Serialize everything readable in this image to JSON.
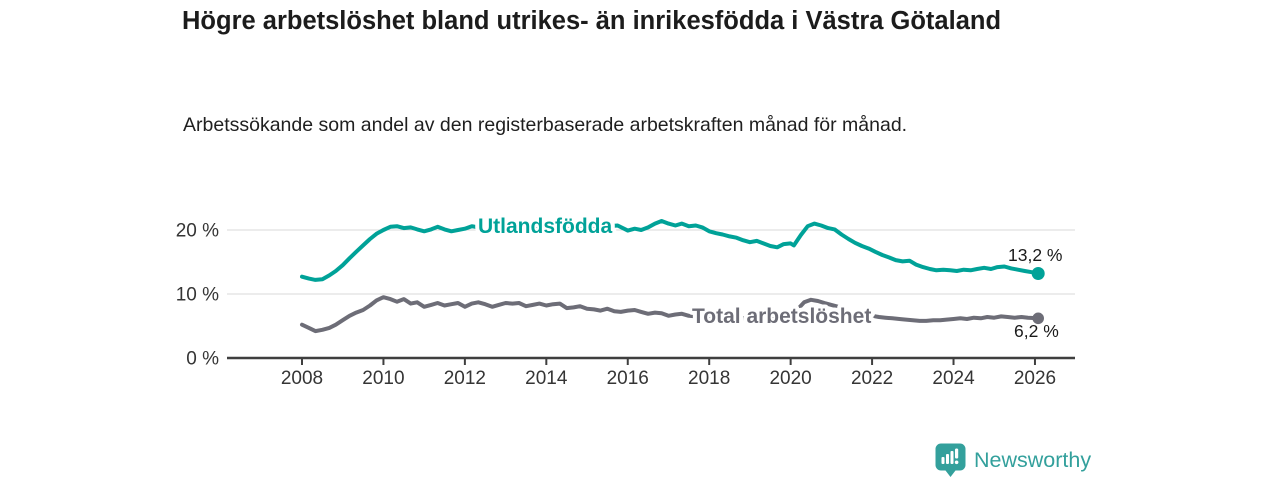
{
  "header": {
    "title": "Högre arbetslöshet bland utrikes- än inrikesfödda i Västra Götaland",
    "subtitle": "Arbetssökande som andel av den registerbaserade arbetskraften månad för månad."
  },
  "branding": {
    "logo_text": "Newsworthy",
    "logo_icon": "bar-chart-bubble-icon",
    "logo_color": "#33a09c"
  },
  "colors": {
    "background": "#ffffff",
    "title_text": "#1c1c1c",
    "axis_text": "#353535",
    "gridline": "#d9d9d9",
    "series_foreign_born": "#00a298",
    "series_total": "#6d6d77"
  },
  "chart_data": {
    "type": "line",
    "title": "Högre arbetslöshet bland utrikes- än inrikesfödda i Västra Götaland",
    "subtitle": "Arbetssökande som andel av den registerbaserade arbetskraften månad för månad.",
    "unit": "%",
    "x_axis": {
      "ticks": [
        2008,
        2010,
        2012,
        2014,
        2016,
        2018,
        2020,
        2022,
        2024,
        2026
      ]
    },
    "y_axis": {
      "ticks": [
        {
          "value": 0,
          "label": "0 %"
        },
        {
          "value": 10,
          "label": "10 %"
        },
        {
          "value": 20,
          "label": "20 %"
        }
      ],
      "range": [
        0,
        23
      ]
    },
    "legend_position": "inline-labels-on-lines",
    "grid": "horizontal-only",
    "series": [
      {
        "name": "Utlandsfödda",
        "color": "#00a298",
        "end_label": "13,2 %",
        "end_value": 13.2,
        "points": [
          [
            2008.0,
            12.7
          ],
          [
            2008.17,
            12.4
          ],
          [
            2008.33,
            12.2
          ],
          [
            2008.5,
            12.3
          ],
          [
            2008.67,
            12.9
          ],
          [
            2008.83,
            13.6
          ],
          [
            2009.0,
            14.5
          ],
          [
            2009.17,
            15.6
          ],
          [
            2009.33,
            16.6
          ],
          [
            2009.5,
            17.6
          ],
          [
            2009.67,
            18.6
          ],
          [
            2009.83,
            19.4
          ],
          [
            2010.0,
            20.0
          ],
          [
            2010.17,
            20.5
          ],
          [
            2010.33,
            20.6
          ],
          [
            2010.5,
            20.3
          ],
          [
            2010.67,
            20.4
          ],
          [
            2010.83,
            20.1
          ],
          [
            2011.0,
            19.8
          ],
          [
            2011.17,
            20.1
          ],
          [
            2011.33,
            20.5
          ],
          [
            2011.5,
            20.1
          ],
          [
            2011.67,
            19.8
          ],
          [
            2011.83,
            20.0
          ],
          [
            2012.0,
            20.2
          ],
          [
            2012.17,
            20.6
          ],
          [
            2012.33,
            20.4
          ],
          [
            2012.5,
            20.3
          ],
          [
            2012.67,
            20.5
          ],
          [
            2012.83,
            20.2
          ],
          [
            2013.0,
            20.4
          ],
          [
            2013.25,
            20.6
          ],
          [
            2013.5,
            20.3
          ],
          [
            2013.75,
            20.5
          ],
          [
            2014.0,
            20.4
          ],
          [
            2014.25,
            20.2
          ],
          [
            2014.5,
            20.4
          ],
          [
            2014.75,
            20.3
          ],
          [
            2015.0,
            20.5
          ],
          [
            2015.25,
            20.4
          ],
          [
            2015.5,
            20.6
          ],
          [
            2015.75,
            20.7
          ],
          [
            2016.0,
            19.9
          ],
          [
            2016.17,
            20.2
          ],
          [
            2016.33,
            20.0
          ],
          [
            2016.5,
            20.4
          ],
          [
            2016.67,
            21.0
          ],
          [
            2016.83,
            21.4
          ],
          [
            2017.0,
            21.0
          ],
          [
            2017.17,
            20.7
          ],
          [
            2017.33,
            21.0
          ],
          [
            2017.5,
            20.6
          ],
          [
            2017.67,
            20.7
          ],
          [
            2017.83,
            20.4
          ],
          [
            2018.0,
            19.8
          ],
          [
            2018.17,
            19.5
          ],
          [
            2018.33,
            19.3
          ],
          [
            2018.5,
            19.0
          ],
          [
            2018.67,
            18.8
          ],
          [
            2018.83,
            18.4
          ],
          [
            2019.0,
            18.1
          ],
          [
            2019.17,
            18.3
          ],
          [
            2019.33,
            17.9
          ],
          [
            2019.5,
            17.5
          ],
          [
            2019.67,
            17.3
          ],
          [
            2019.83,
            17.8
          ],
          [
            2020.0,
            17.9
          ],
          [
            2020.08,
            17.6
          ],
          [
            2020.25,
            19.2
          ],
          [
            2020.42,
            20.6
          ],
          [
            2020.58,
            21.0
          ],
          [
            2020.75,
            20.7
          ],
          [
            2020.92,
            20.3
          ],
          [
            2021.08,
            20.1
          ],
          [
            2021.25,
            19.3
          ],
          [
            2021.42,
            18.6
          ],
          [
            2021.58,
            18.0
          ],
          [
            2021.75,
            17.5
          ],
          [
            2021.92,
            17.1
          ],
          [
            2022.08,
            16.6
          ],
          [
            2022.25,
            16.1
          ],
          [
            2022.42,
            15.7
          ],
          [
            2022.58,
            15.3
          ],
          [
            2022.75,
            15.1
          ],
          [
            2022.92,
            15.2
          ],
          [
            2023.08,
            14.6
          ],
          [
            2023.25,
            14.2
          ],
          [
            2023.42,
            13.9
          ],
          [
            2023.58,
            13.7
          ],
          [
            2023.75,
            13.8
          ],
          [
            2023.92,
            13.7
          ],
          [
            2024.08,
            13.6
          ],
          [
            2024.25,
            13.8
          ],
          [
            2024.42,
            13.7
          ],
          [
            2024.58,
            13.9
          ],
          [
            2024.75,
            14.1
          ],
          [
            2024.92,
            13.9
          ],
          [
            2025.08,
            14.2
          ],
          [
            2025.25,
            14.3
          ],
          [
            2025.42,
            14.0
          ],
          [
            2025.58,
            13.8
          ],
          [
            2025.75,
            13.6
          ],
          [
            2025.92,
            13.4
          ],
          [
            2026.08,
            13.2
          ]
        ]
      },
      {
        "name": "Total arbetslöshet",
        "color": "#6d6d77",
        "end_label": "6,2 %",
        "end_value": 6.2,
        "points": [
          [
            2008.0,
            5.2
          ],
          [
            2008.17,
            4.7
          ],
          [
            2008.33,
            4.2
          ],
          [
            2008.5,
            4.4
          ],
          [
            2008.67,
            4.7
          ],
          [
            2008.83,
            5.2
          ],
          [
            2009.0,
            5.9
          ],
          [
            2009.17,
            6.6
          ],
          [
            2009.33,
            7.1
          ],
          [
            2009.5,
            7.5
          ],
          [
            2009.67,
            8.2
          ],
          [
            2009.83,
            9.0
          ],
          [
            2010.0,
            9.5
          ],
          [
            2010.17,
            9.2
          ],
          [
            2010.33,
            8.8
          ],
          [
            2010.5,
            9.2
          ],
          [
            2010.67,
            8.5
          ],
          [
            2010.83,
            8.7
          ],
          [
            2011.0,
            8.0
          ],
          [
            2011.17,
            8.3
          ],
          [
            2011.33,
            8.6
          ],
          [
            2011.5,
            8.2
          ],
          [
            2011.67,
            8.4
          ],
          [
            2011.83,
            8.6
          ],
          [
            2012.0,
            8.0
          ],
          [
            2012.17,
            8.5
          ],
          [
            2012.33,
            8.7
          ],
          [
            2012.5,
            8.4
          ],
          [
            2012.67,
            8.0
          ],
          [
            2012.83,
            8.3
          ],
          [
            2013.0,
            8.6
          ],
          [
            2013.17,
            8.5
          ],
          [
            2013.33,
            8.6
          ],
          [
            2013.5,
            8.1
          ],
          [
            2013.67,
            8.3
          ],
          [
            2013.83,
            8.5
          ],
          [
            2014.0,
            8.2
          ],
          [
            2014.17,
            8.4
          ],
          [
            2014.33,
            8.5
          ],
          [
            2014.5,
            7.8
          ],
          [
            2014.67,
            7.9
          ],
          [
            2014.83,
            8.1
          ],
          [
            2015.0,
            7.7
          ],
          [
            2015.17,
            7.6
          ],
          [
            2015.33,
            7.4
          ],
          [
            2015.5,
            7.7
          ],
          [
            2015.67,
            7.3
          ],
          [
            2015.83,
            7.2
          ],
          [
            2016.0,
            7.4
          ],
          [
            2016.17,
            7.5
          ],
          [
            2016.33,
            7.2
          ],
          [
            2016.5,
            6.9
          ],
          [
            2016.67,
            7.1
          ],
          [
            2016.83,
            7.0
          ],
          [
            2017.0,
            6.6
          ],
          [
            2017.17,
            6.8
          ],
          [
            2017.33,
            6.9
          ],
          [
            2017.5,
            6.6
          ],
          [
            2017.67,
            6.5
          ],
          [
            2017.83,
            6.4
          ],
          [
            2018.0,
            6.5
          ],
          [
            2018.17,
            6.3
          ],
          [
            2018.33,
            6.2
          ],
          [
            2018.5,
            6.1
          ],
          [
            2018.67,
            6.3
          ],
          [
            2018.83,
            6.2
          ],
          [
            2019.0,
            6.3
          ],
          [
            2019.17,
            6.4
          ],
          [
            2019.33,
            6.3
          ],
          [
            2019.5,
            6.4
          ],
          [
            2019.67,
            6.5
          ],
          [
            2019.83,
            6.6
          ],
          [
            2020.0,
            6.8
          ],
          [
            2020.17,
            7.6
          ],
          [
            2020.33,
            8.7
          ],
          [
            2020.5,
            9.1
          ],
          [
            2020.67,
            8.9
          ],
          [
            2020.83,
            8.6
          ],
          [
            2021.0,
            8.3
          ],
          [
            2021.17,
            8.0
          ],
          [
            2021.33,
            7.7
          ],
          [
            2021.5,
            7.3
          ],
          [
            2021.67,
            7.0
          ],
          [
            2021.83,
            6.8
          ],
          [
            2022.0,
            6.6
          ],
          [
            2022.17,
            6.4
          ],
          [
            2022.33,
            6.3
          ],
          [
            2022.5,
            6.2
          ],
          [
            2022.67,
            6.1
          ],
          [
            2022.83,
            6.0
          ],
          [
            2023.0,
            5.9
          ],
          [
            2023.17,
            5.8
          ],
          [
            2023.33,
            5.8
          ],
          [
            2023.5,
            5.9
          ],
          [
            2023.67,
            5.9
          ],
          [
            2023.83,
            6.0
          ],
          [
            2024.0,
            6.1
          ],
          [
            2024.17,
            6.2
          ],
          [
            2024.33,
            6.1
          ],
          [
            2024.5,
            6.3
          ],
          [
            2024.67,
            6.2
          ],
          [
            2024.83,
            6.4
          ],
          [
            2025.0,
            6.3
          ],
          [
            2025.17,
            6.5
          ],
          [
            2025.33,
            6.4
          ],
          [
            2025.5,
            6.3
          ],
          [
            2025.67,
            6.4
          ],
          [
            2025.83,
            6.3
          ],
          [
            2026.08,
            6.2
          ]
        ]
      }
    ]
  }
}
